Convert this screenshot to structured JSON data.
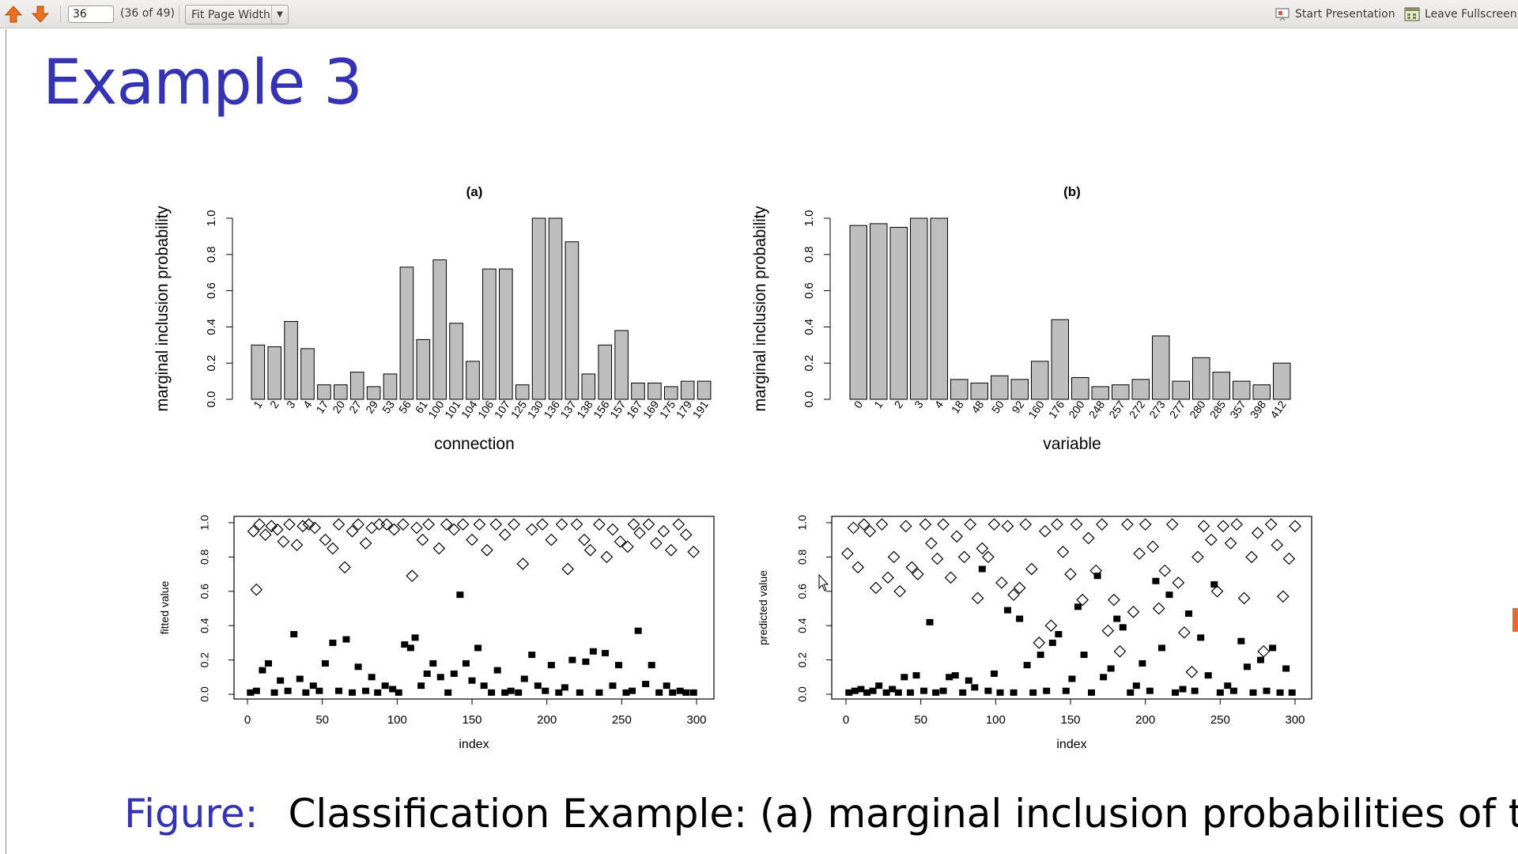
{
  "toolbar": {
    "prev_icon": "up-arrow-icon",
    "next_icon": "down-arrow-icon",
    "page_value": "36",
    "page_count": "(36 of 49)",
    "zoom_value": "Fit Page Width",
    "start_presentation": "Start Presentation",
    "leave_fullscreen": "Leave Fullscreen",
    "accent": "#e8701e"
  },
  "slide": {
    "title": "Example 3",
    "caption_label": "Figure:",
    "caption_text": "Classification Example: (a) marginal inclusion probabilities of the",
    "title_color": "#3333b3"
  },
  "chart_data": [
    {
      "type": "bar",
      "title": "(a)",
      "xlabel": "connection",
      "ylabel": "marginal inclusion probability",
      "ylim": [
        0,
        1
      ],
      "yticks": [
        "0.0",
        "0.2",
        "0.4",
        "0.6",
        "0.8",
        "1.0"
      ],
      "categories": [
        "1",
        "2",
        "3",
        "4",
        "17",
        "20",
        "27",
        "29",
        "53",
        "56",
        "61",
        "100",
        "101",
        "104",
        "106",
        "107",
        "125",
        "130",
        "136",
        "137",
        "138",
        "156",
        "157",
        "167",
        "169",
        "175",
        "179",
        "191"
      ],
      "values": [
        0.3,
        0.29,
        0.43,
        0.28,
        0.08,
        0.08,
        0.15,
        0.07,
        0.14,
        0.73,
        0.33,
        0.77,
        0.42,
        0.21,
        0.72,
        0.72,
        0.08,
        1.0,
        1.0,
        0.87,
        0.14,
        0.3,
        0.38,
        0.09,
        0.09,
        0.07,
        0.1,
        0.1
      ]
    },
    {
      "type": "bar",
      "title": "(b)",
      "xlabel": "variable",
      "ylabel": "marginal inclusion probability",
      "ylim": [
        0,
        1
      ],
      "yticks": [
        "0.0",
        "0.2",
        "0.4",
        "0.6",
        "0.8",
        "1.0"
      ],
      "categories": [
        "0",
        "1",
        "2",
        "3",
        "4",
        "18",
        "48",
        "50",
        "92",
        "160",
        "176",
        "200",
        "248",
        "257",
        "272",
        "273",
        "277",
        "280",
        "285",
        "357",
        "398",
        "412"
      ],
      "values": [
        0.96,
        0.97,
        0.95,
        1.0,
        1.0,
        0.11,
        0.09,
        0.13,
        0.11,
        0.21,
        0.44,
        0.12,
        0.07,
        0.08,
        0.11,
        0.35,
        0.1,
        0.23,
        0.15,
        0.1,
        0.08,
        0.2
      ]
    },
    {
      "type": "scatter",
      "xlabel": "index",
      "ylabel": "fitted value",
      "xlim": [
        0,
        300
      ],
      "ylim": [
        0,
        1
      ],
      "xticks": [
        "0",
        "50",
        "100",
        "150",
        "200",
        "250",
        "300"
      ],
      "yticks": [
        "0.0",
        "0.2",
        "0.4",
        "0.6",
        "0.8",
        "1.0"
      ],
      "series": [
        {
          "marker": "open-diamond",
          "x": [
            4,
            6,
            8,
            12,
            16,
            20,
            24,
            28,
            33,
            37,
            41,
            45,
            52,
            57,
            61,
            65,
            70,
            74,
            79,
            83,
            88,
            93,
            98,
            104,
            110,
            113,
            117,
            121,
            128,
            133,
            138,
            144,
            150,
            155,
            160,
            166,
            172,
            178,
            184,
            190,
            197,
            203,
            210,
            214,
            220,
            225,
            229,
            235,
            240,
            244,
            249,
            254,
            258,
            262,
            268,
            273,
            278,
            283,
            288,
            293,
            298
          ],
          "y": [
            0.95,
            0.61,
            0.99,
            0.93,
            0.98,
            0.96,
            0.89,
            0.99,
            0.87,
            0.98,
            0.99,
            0.97,
            0.9,
            0.85,
            0.99,
            0.74,
            0.95,
            0.99,
            0.88,
            0.97,
            0.99,
            0.99,
            0.96,
            0.99,
            0.69,
            0.97,
            0.9,
            0.99,
            0.85,
            0.99,
            0.96,
            0.99,
            0.9,
            0.99,
            0.84,
            0.99,
            0.93,
            0.99,
            0.76,
            0.96,
            0.99,
            0.9,
            0.99,
            0.73,
            0.99,
            0.9,
            0.84,
            0.99,
            0.8,
            0.96,
            0.89,
            0.86,
            0.99,
            0.94,
            0.99,
            0.88,
            0.95,
            0.84,
            0.99,
            0.93,
            0.83
          ]
        },
        {
          "marker": "filled-square",
          "x": [
            2,
            6,
            10,
            14,
            18,
            22,
            27,
            31,
            35,
            39,
            44,
            48,
            52,
            57,
            61,
            66,
            70,
            74,
            79,
            83,
            87,
            92,
            97,
            101,
            105,
            109,
            112,
            116,
            120,
            124,
            129,
            134,
            138,
            142,
            146,
            150,
            154,
            158,
            163,
            167,
            172,
            176,
            181,
            185,
            190,
            194,
            199,
            203,
            208,
            212,
            217,
            222,
            226,
            231,
            235,
            239,
            244,
            248,
            253,
            257,
            261,
            266,
            270,
            275,
            280,
            284,
            289,
            293,
            298
          ],
          "y": [
            0.01,
            0.02,
            0.14,
            0.18,
            0.01,
            0.08,
            0.02,
            0.35,
            0.09,
            0.01,
            0.05,
            0.02,
            0.18,
            0.3,
            0.02,
            0.32,
            0.01,
            0.16,
            0.02,
            0.1,
            0.01,
            0.05,
            0.03,
            0.01,
            0.29,
            0.27,
            0.33,
            0.05,
            0.12,
            0.18,
            0.1,
            0.01,
            0.12,
            0.58,
            0.18,
            0.08,
            0.27,
            0.05,
            0.01,
            0.14,
            0.01,
            0.02,
            0.01,
            0.09,
            0.23,
            0.05,
            0.02,
            0.17,
            0.01,
            0.04,
            0.2,
            0.01,
            0.19,
            0.25,
            0.01,
            0.24,
            0.05,
            0.17,
            0.01,
            0.02,
            0.37,
            0.06,
            0.17,
            0.01,
            0.05,
            0.01,
            0.02,
            0.01,
            0.01
          ]
        }
      ]
    },
    {
      "type": "scatter",
      "xlabel": "index",
      "ylabel": "predicted value",
      "xlim": [
        0,
        300
      ],
      "ylim": [
        0,
        1
      ],
      "xticks": [
        "0",
        "50",
        "100",
        "150",
        "200",
        "250",
        "300"
      ],
      "yticks": [
        "0.0",
        "0.2",
        "0.4",
        "0.6",
        "0.8",
        "1.0"
      ],
      "series": [
        {
          "marker": "open-diamond",
          "x": [
            1,
            5,
            8,
            12,
            16,
            20,
            24,
            28,
            32,
            36,
            40,
            44,
            48,
            53,
            57,
            61,
            65,
            70,
            74,
            79,
            83,
            88,
            91,
            95,
            99,
            104,
            108,
            112,
            116,
            120,
            124,
            129,
            133,
            137,
            141,
            145,
            150,
            154,
            158,
            162,
            167,
            171,
            175,
            179,
            183,
            188,
            192,
            196,
            200,
            205,
            209,
            213,
            218,
            222,
            226,
            231,
            235,
            239,
            244,
            248,
            252,
            257,
            261,
            266,
            271,
            275,
            279,
            284,
            288,
            292,
            296,
            300
          ],
          "y": [
            0.82,
            0.97,
            0.74,
            0.99,
            0.95,
            0.62,
            0.99,
            0.68,
            0.8,
            0.6,
            0.98,
            0.74,
            0.7,
            0.99,
            0.88,
            0.79,
            0.99,
            0.68,
            0.92,
            0.8,
            0.99,
            0.56,
            0.85,
            0.8,
            0.99,
            0.65,
            0.98,
            0.58,
            0.62,
            0.99,
            0.73,
            0.3,
            0.95,
            0.4,
            0.99,
            0.83,
            0.7,
            0.99,
            0.55,
            0.91,
            0.72,
            0.99,
            0.37,
            0.55,
            0.25,
            0.99,
            0.48,
            0.82,
            0.99,
            0.86,
            0.5,
            0.72,
            0.99,
            0.65,
            0.36,
            0.13,
            0.8,
            0.98,
            0.9,
            0.6,
            0.98,
            0.88,
            0.99,
            0.56,
            0.8,
            0.94,
            0.25,
            0.99,
            0.87,
            0.57,
            0.79,
            0.98
          ]
        },
        {
          "marker": "filled-square",
          "x": [
            2,
            6,
            10,
            14,
            18,
            22,
            27,
            31,
            35,
            39,
            43,
            47,
            52,
            56,
            60,
            65,
            69,
            73,
            78,
            82,
            86,
            91,
            95,
            99,
            103,
            108,
            112,
            116,
            121,
            125,
            130,
            134,
            138,
            142,
            147,
            151,
            155,
            159,
            164,
            168,
            172,
            177,
            181,
            185,
            190,
            194,
            198,
            203,
            207,
            211,
            216,
            220,
            225,
            229,
            233,
            237,
            242,
            246,
            250,
            255,
            259,
            264,
            268,
            272,
            277,
            281,
            285,
            290,
            294,
            298
          ],
          "y": [
            0.01,
            0.02,
            0.03,
            0.01,
            0.02,
            0.05,
            0.01,
            0.03,
            0.01,
            0.1,
            0.01,
            0.11,
            0.02,
            0.42,
            0.01,
            0.02,
            0.1,
            0.11,
            0.01,
            0.08,
            0.04,
            0.73,
            0.02,
            0.12,
            0.01,
            0.49,
            0.01,
            0.44,
            0.17,
            0.01,
            0.23,
            0.02,
            0.3,
            0.35,
            0.02,
            0.09,
            0.51,
            0.23,
            0.01,
            0.69,
            0.1,
            0.15,
            0.44,
            0.39,
            0.01,
            0.05,
            0.18,
            0.02,
            0.66,
            0.27,
            0.58,
            0.01,
            0.03,
            0.47,
            0.02,
            0.33,
            0.11,
            0.64,
            0.01,
            0.05,
            0.02,
            0.31,
            0.16,
            0.01,
            0.2,
            0.02,
            0.27,
            0.01,
            0.15,
            0.01
          ]
        }
      ]
    }
  ]
}
